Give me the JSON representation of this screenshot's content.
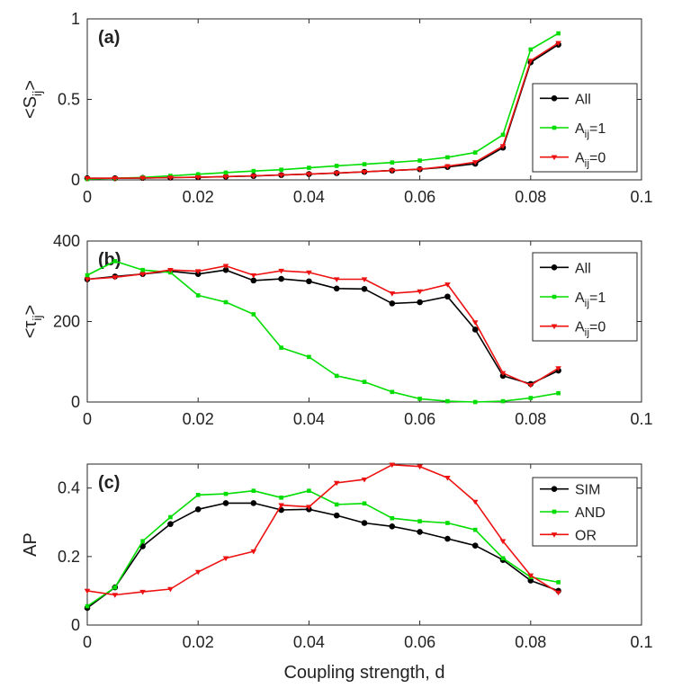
{
  "chart_data": [
    {
      "type": "line",
      "panel_label": "(a)",
      "ylabel": "<S",
      "ylabel_sub": "ij",
      "ylabel_close": ">",
      "xlim": [
        0,
        0.1
      ],
      "ylim": [
        0,
        1
      ],
      "xticks": [
        0,
        0.02,
        0.04,
        0.06,
        0.08,
        0.1
      ],
      "xtick_labels": [
        "0",
        "0.02",
        "0.04",
        "0.06",
        "0.08",
        "0.1"
      ],
      "yticks": [
        0,
        0.5,
        1
      ],
      "ytick_labels": [
        "0",
        "0.5",
        "1"
      ],
      "x": [
        0,
        0.005,
        0.01,
        0.015,
        0.02,
        0.025,
        0.03,
        0.035,
        0.04,
        0.045,
        0.05,
        0.055,
        0.06,
        0.065,
        0.07,
        0.075,
        0.08,
        0.085
      ],
      "series": [
        {
          "key": "all",
          "name": "All",
          "sub": "",
          "suffix": "",
          "color": "#000000",
          "marker": "circle",
          "values": [
            0.01,
            0.01,
            0.012,
            0.014,
            0.016,
            0.02,
            0.024,
            0.03,
            0.036,
            0.042,
            0.05,
            0.058,
            0.066,
            0.08,
            0.1,
            0.2,
            0.73,
            0.84
          ]
        },
        {
          "key": "aij1",
          "name": "A",
          "sub": "ij",
          "suffix": "=1",
          "color": "#00dd00",
          "marker": "square",
          "values": [
            0.005,
            0.01,
            0.015,
            0.025,
            0.035,
            0.045,
            0.055,
            0.063,
            0.075,
            0.087,
            0.097,
            0.108,
            0.12,
            0.14,
            0.17,
            0.28,
            0.81,
            0.91
          ]
        },
        {
          "key": "aij0",
          "name": "A",
          "sub": "ij",
          "suffix": "=0",
          "color": "#ee1111",
          "marker": "triangle-down",
          "values": [
            0.01,
            0.01,
            0.012,
            0.014,
            0.016,
            0.02,
            0.025,
            0.03,
            0.036,
            0.043,
            0.05,
            0.058,
            0.066,
            0.085,
            0.11,
            0.21,
            0.74,
            0.85
          ]
        }
      ]
    },
    {
      "type": "line",
      "panel_label": "(b)",
      "ylabel": "<τ",
      "ylabel_sub": "ij",
      "ylabel_close": ">",
      "xlim": [
        0,
        0.1
      ],
      "ylim": [
        0,
        400
      ],
      "xticks": [
        0,
        0.02,
        0.04,
        0.06,
        0.08,
        0.1
      ],
      "xtick_labels": [
        "0",
        "0.02",
        "0.04",
        "0.06",
        "0.08",
        "0.1"
      ],
      "yticks": [
        0,
        200,
        400
      ],
      "ytick_labels": [
        "0",
        "200",
        "400"
      ],
      "x": [
        0,
        0.005,
        0.01,
        0.015,
        0.02,
        0.025,
        0.03,
        0.035,
        0.04,
        0.045,
        0.05,
        0.055,
        0.06,
        0.065,
        0.07,
        0.075,
        0.08,
        0.085
      ],
      "series": [
        {
          "key": "all",
          "name": "All",
          "sub": "",
          "suffix": "",
          "color": "#000000",
          "marker": "circle",
          "values": [
            305,
            312,
            318,
            325,
            318,
            328,
            302,
            306,
            300,
            282,
            281,
            245,
            248,
            262,
            180,
            65,
            45,
            78
          ]
        },
        {
          "key": "aij1",
          "name": "A",
          "sub": "ij",
          "suffix": "=1",
          "color": "#00dd00",
          "marker": "square",
          "values": [
            315,
            350,
            328,
            322,
            265,
            248,
            218,
            135,
            112,
            65,
            50,
            25,
            8,
            2,
            0,
            2,
            10,
            22
          ]
        },
        {
          "key": "aij0",
          "name": "A",
          "sub": "ij",
          "suffix": "=0",
          "color": "#ee1111",
          "marker": "triangle-down",
          "values": [
            305,
            310,
            318,
            328,
            325,
            338,
            315,
            326,
            322,
            305,
            305,
            270,
            275,
            292,
            198,
            72,
            42,
            84
          ]
        }
      ]
    },
    {
      "type": "line",
      "panel_label": "(c)",
      "ylabel": "AP",
      "ylabel_sub": "",
      "ylabel_close": "",
      "xlabel": "Coupling strength, d",
      "xlim": [
        0,
        0.1
      ],
      "ylim": [
        0,
        0.47
      ],
      "xticks": [
        0,
        0.02,
        0.04,
        0.06,
        0.08,
        0.1
      ],
      "xtick_labels": [
        "0",
        "0.02",
        "0.04",
        "0.06",
        "0.08",
        "0.1"
      ],
      "yticks": [
        0,
        0.2,
        0.4
      ],
      "ytick_labels": [
        "0",
        "0.2",
        "0.4"
      ],
      "x": [
        0,
        0.005,
        0.01,
        0.015,
        0.02,
        0.025,
        0.03,
        0.035,
        0.04,
        0.045,
        0.05,
        0.055,
        0.06,
        0.065,
        0.07,
        0.075,
        0.08,
        0.085
      ],
      "series": [
        {
          "key": "sim",
          "name": "SIM",
          "sub": "",
          "suffix": "",
          "color": "#000000",
          "marker": "circle",
          "values": [
            0.05,
            0.11,
            0.23,
            0.295,
            0.338,
            0.356,
            0.356,
            0.336,
            0.338,
            0.32,
            0.298,
            0.288,
            0.272,
            0.252,
            0.232,
            0.19,
            0.13,
            0.1
          ]
        },
        {
          "key": "and",
          "name": "AND",
          "sub": "",
          "suffix": "",
          "color": "#00dd00",
          "marker": "square",
          "values": [
            0.055,
            0.11,
            0.245,
            0.315,
            0.38,
            0.383,
            0.392,
            0.372,
            0.392,
            0.352,
            0.355,
            0.312,
            0.303,
            0.298,
            0.278,
            0.195,
            0.14,
            0.125
          ]
        },
        {
          "key": "or",
          "name": "OR",
          "sub": "",
          "suffix": "",
          "color": "#ee1111",
          "marker": "triangle-down",
          "values": [
            0.1,
            0.088,
            0.097,
            0.105,
            0.155,
            0.195,
            0.215,
            0.35,
            0.345,
            0.415,
            0.425,
            0.468,
            0.463,
            0.43,
            0.36,
            0.245,
            0.145,
            0.095
          ]
        }
      ]
    }
  ]
}
